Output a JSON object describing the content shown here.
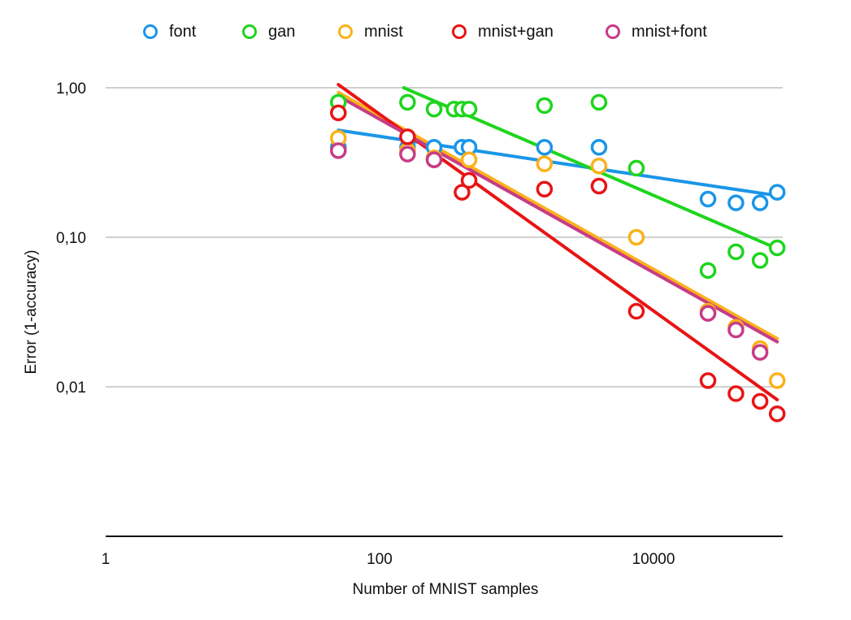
{
  "chart_data": {
    "type": "scatter",
    "title": "",
    "xlabel": "Number of MNIST samples",
    "ylabel": "Error (1-accuracy)",
    "xscale": "log",
    "yscale": "log",
    "xlim": [
      1,
      100000
    ],
    "ylim": [
      0.001,
      1.9
    ],
    "xticks": [
      {
        "value": 1,
        "label": "1"
      },
      {
        "value": 100,
        "label": "100"
      },
      {
        "value": 10000,
        "label": "10000"
      }
    ],
    "yticks": [
      {
        "value": 1,
        "label": "1,00"
      },
      {
        "value": 0.1,
        "label": "0,10"
      },
      {
        "value": 0.01,
        "label": "0,01"
      }
    ],
    "grid": true,
    "legend_position": "top",
    "series": [
      {
        "name": "font",
        "color": "#1a96e8",
        "x": [
          50,
          160,
          250,
          400,
          450,
          1600,
          4000,
          25000,
          40000,
          60000,
          80000
        ],
        "y": [
          0.4,
          0.4,
          0.4,
          0.4,
          0.4,
          0.4,
          0.4,
          0.18,
          0.17,
          0.17,
          0.2
        ],
        "trend": {
          "x": [
            50,
            80000
          ],
          "y": [
            0.52,
            0.19
          ]
        }
      },
      {
        "name": "gan",
        "color": "#1ed51e",
        "x": [
          50,
          160,
          250,
          350,
          400,
          450,
          1600,
          4000,
          7500,
          25000,
          40000,
          60000,
          80000
        ],
        "y": [
          0.8,
          0.8,
          0.72,
          0.72,
          0.72,
          0.72,
          0.76,
          0.8,
          0.29,
          0.06,
          0.08,
          0.07,
          0.085
        ],
        "trend": {
          "x": [
            150,
            80000
          ],
          "y": [
            1.0,
            0.084
          ]
        }
      },
      {
        "name": "mnist",
        "color": "#fbb11a",
        "x": [
          50,
          160,
          250,
          450,
          1600,
          4000,
          7500,
          25000,
          40000,
          60000,
          80000
        ],
        "y": [
          0.46,
          0.38,
          0.34,
          0.33,
          0.31,
          0.3,
          0.1,
          0.032,
          0.025,
          0.018,
          0.011
        ],
        "trend": {
          "x": [
            50,
            80000
          ],
          "y": [
            0.93,
            0.021
          ]
        }
      },
      {
        "name": "mnist+gan",
        "color": "#e81414",
        "x": [
          50,
          160,
          250,
          400,
          450,
          1600,
          4000,
          7500,
          25000,
          40000,
          60000,
          80000
        ],
        "y": [
          0.68,
          0.47,
          0.33,
          0.2,
          0.24,
          0.21,
          0.22,
          0.032,
          0.011,
          0.009,
          0.008,
          0.0066
        ],
        "trend": {
          "x": [
            50,
            80000
          ],
          "y": [
            1.05,
            0.0082
          ]
        }
      },
      {
        "name": "mnist+font",
        "color": "#c73c86",
        "x": [
          50,
          160,
          250,
          25000,
          40000,
          60000
        ],
        "y": [
          0.38,
          0.36,
          0.33,
          0.031,
          0.024,
          0.017
        ],
        "trend": {
          "x": [
            50,
            80000
          ],
          "y": [
            0.88,
            0.02
          ]
        }
      }
    ]
  }
}
